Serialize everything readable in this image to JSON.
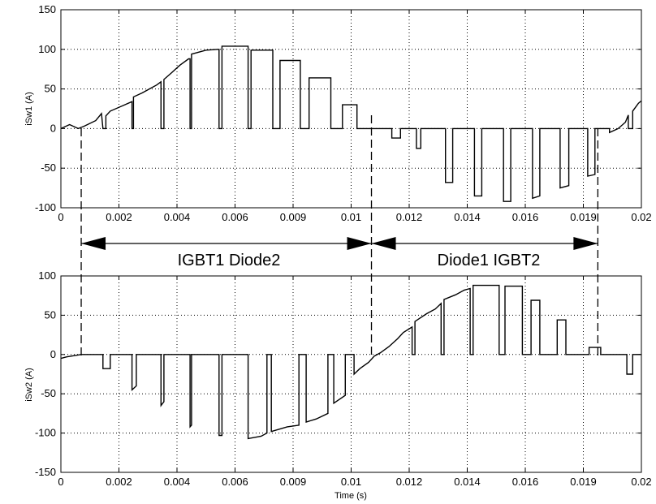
{
  "chart_data": [
    {
      "type": "line",
      "ylabel": "iSw1 (A)",
      "xlabel": "",
      "xlim": [
        0,
        0.02
      ],
      "ylim": [
        -100,
        150
      ],
      "grid": true,
      "x_ticks": [
        "0",
        "0.002",
        "0.004",
        "0.006",
        "0.009",
        "0.01",
        "0.012",
        "0.014",
        "0.016",
        "0.019",
        "0.02"
      ],
      "y_ticks": [
        "150",
        "100",
        "50",
        "0",
        "-50",
        "-100"
      ],
      "series": [
        {
          "points": [
            [
              0,
              0
            ],
            [
              0.0003,
              5
            ],
            [
              0.0006,
              0
            ],
            [
              0.0008,
              3
            ],
            [
              0.0012,
              10
            ],
            [
              0.0014,
              19
            ],
            [
              0.00145,
              0
            ],
            [
              0.00155,
              0
            ],
            [
              0.00155,
              16
            ],
            [
              0.0017,
              22
            ],
            [
              0.0022,
              30
            ],
            [
              0.00245,
              34
            ],
            [
              0.00245,
              0
            ],
            [
              0.0025,
              0
            ],
            [
              0.0025,
              40
            ],
            [
              0.0028,
              45
            ],
            [
              0.0031,
              51
            ],
            [
              0.0033,
              55
            ],
            [
              0.00345,
              59
            ],
            [
              0.00345,
              0
            ],
            [
              0.00355,
              0
            ],
            [
              0.00355,
              62
            ],
            [
              0.0038,
              70
            ],
            [
              0.0041,
              80
            ],
            [
              0.0044,
              88
            ],
            [
              0.00445,
              88
            ],
            [
              0.00445,
              0
            ],
            [
              0.0045,
              0
            ],
            [
              0.0045,
              94
            ],
            [
              0.005,
              99
            ],
            [
              0.0054,
              100
            ],
            [
              0.00545,
              100
            ],
            [
              0.00545,
              0
            ],
            [
              0.00555,
              0
            ],
            [
              0.00555,
              104
            ],
            [
              0.0064,
              104
            ],
            [
              0.00645,
              104
            ],
            [
              0.00645,
              0
            ],
            [
              0.00655,
              0
            ],
            [
              0.00655,
              99
            ],
            [
              0.0071,
              99
            ],
            [
              0.0073,
              99
            ],
            [
              0.0073,
              0
            ],
            [
              0.00755,
              0
            ],
            [
              0.00755,
              86
            ],
            [
              0.0081,
              86
            ],
            [
              0.00825,
              86
            ],
            [
              0.00825,
              0
            ],
            [
              0.00855,
              0
            ],
            [
              0.00855,
              64
            ],
            [
              0.0092,
              64
            ],
            [
              0.0093,
              64
            ],
            [
              0.0093,
              0
            ],
            [
              0.0097,
              0
            ],
            [
              0.0097,
              30
            ],
            [
              0.0102,
              30
            ],
            [
              0.0102,
              0
            ],
            [
              0.0114,
              0
            ],
            [
              0.0114,
              -12
            ],
            [
              0.0117,
              -12
            ],
            [
              0.0117,
              0
            ],
            [
              0.01225,
              0
            ],
            [
              0.01225,
              -25
            ],
            [
              0.0124,
              -25
            ],
            [
              0.0124,
              0
            ],
            [
              0.01325,
              0
            ],
            [
              0.01325,
              -68
            ],
            [
              0.0135,
              -68
            ],
            [
              0.0135,
              0
            ],
            [
              0.01425,
              0
            ],
            [
              0.01425,
              -85
            ],
            [
              0.0145,
              -85
            ],
            [
              0.0145,
              0
            ],
            [
              0.01525,
              0
            ],
            [
              0.01525,
              -92
            ],
            [
              0.0155,
              -92
            ],
            [
              0.0155,
              0
            ],
            [
              0.01625,
              0
            ],
            [
              0.01625,
              -88
            ],
            [
              0.0165,
              -85
            ],
            [
              0.0165,
              0
            ],
            [
              0.0172,
              0
            ],
            [
              0.0172,
              -75
            ],
            [
              0.0175,
              -72
            ],
            [
              0.0175,
              0
            ],
            [
              0.01815,
              0
            ],
            [
              0.01815,
              -60
            ],
            [
              0.0184,
              -58
            ],
            [
              0.0184,
              0
            ],
            [
              0.0189,
              0
            ],
            [
              0.0189,
              -5
            ],
            [
              0.0192,
              0
            ],
            [
              0.01945,
              8
            ],
            [
              0.01955,
              17
            ],
            [
              0.01955,
              0
            ],
            [
              0.0197,
              0
            ],
            [
              0.0197,
              22
            ],
            [
              0.0199,
              32
            ],
            [
              0.0201,
              38
            ],
            [
              0.0203,
              38
            ]
          ]
        }
      ]
    },
    {
      "type": "line",
      "ylabel": "iSw2 (A)",
      "xlabel": "Time (s)",
      "xlim": [
        0,
        0.02
      ],
      "ylim": [
        -150,
        100
      ],
      "grid": true,
      "x_ticks": [
        "0",
        "0.002",
        "0.004",
        "0.006",
        "0.009",
        "0.01",
        "0.012",
        "0.014",
        "0.016",
        "0.019",
        "0.02"
      ],
      "y_ticks": [
        "100",
        "50",
        "0",
        "-50",
        "-100",
        "-150"
      ],
      "series": [
        {
          "points": [
            [
              0,
              -5
            ],
            [
              0.0002,
              -3
            ],
            [
              0.0007,
              0
            ],
            [
              0.00145,
              0
            ],
            [
              0.00145,
              -18
            ],
            [
              0.0017,
              -18
            ],
            [
              0.0017,
              0
            ],
            [
              0.00245,
              0
            ],
            [
              0.00245,
              -45
            ],
            [
              0.0026,
              -40
            ],
            [
              0.0026,
              0
            ],
            [
              0.00345,
              0
            ],
            [
              0.00345,
              -65
            ],
            [
              0.00355,
              -60
            ],
            [
              0.00355,
              0
            ],
            [
              0.00445,
              0
            ],
            [
              0.00445,
              -92
            ],
            [
              0.0045,
              -90
            ],
            [
              0.0045,
              0
            ],
            [
              0.00545,
              0
            ],
            [
              0.00545,
              -103
            ],
            [
              0.00555,
              -103
            ],
            [
              0.00555,
              0
            ],
            [
              0.00645,
              0
            ],
            [
              0.00645,
              -107
            ],
            [
              0.0069,
              -104
            ],
            [
              0.0071,
              -100
            ],
            [
              0.0071,
              0
            ],
            [
              0.00725,
              0
            ],
            [
              0.00725,
              -98
            ],
            [
              0.0078,
              -92
            ],
            [
              0.0082,
              -90
            ],
            [
              0.0082,
              0
            ],
            [
              0.00845,
              0
            ],
            [
              0.00845,
              -86
            ],
            [
              0.0088,
              -82
            ],
            [
              0.0092,
              -75
            ],
            [
              0.0092,
              0
            ],
            [
              0.0094,
              0
            ],
            [
              0.0094,
              -62
            ],
            [
              0.0098,
              -52
            ],
            [
              0.0098,
              0
            ],
            [
              0.0101,
              0
            ],
            [
              0.0101,
              -25
            ],
            [
              0.0103,
              -18
            ],
            [
              0.0106,
              -10
            ],
            [
              0.0108,
              -2
            ],
            [
              0.011,
              2
            ],
            [
              0.0113,
              10
            ],
            [
              0.0116,
              20
            ],
            [
              0.0118,
              28
            ],
            [
              0.0121,
              35
            ],
            [
              0.0121,
              0
            ],
            [
              0.0122,
              0
            ],
            [
              0.0122,
              42
            ],
            [
              0.0126,
              52
            ],
            [
              0.0129,
              58
            ],
            [
              0.0131,
              65
            ],
            [
              0.0131,
              0
            ],
            [
              0.0132,
              0
            ],
            [
              0.0132,
              70
            ],
            [
              0.0136,
              76
            ],
            [
              0.0139,
              82
            ],
            [
              0.0141,
              84
            ],
            [
              0.0141,
              0
            ],
            [
              0.0142,
              0
            ],
            [
              0.0142,
              88
            ],
            [
              0.0149,
              88
            ],
            [
              0.0151,
              88
            ],
            [
              0.0151,
              0
            ],
            [
              0.0153,
              0
            ],
            [
              0.0153,
              87
            ],
            [
              0.0159,
              87
            ],
            [
              0.0159,
              0
            ],
            [
              0.0162,
              0
            ],
            [
              0.0162,
              69
            ],
            [
              0.0165,
              69
            ],
            [
              0.0165,
              0
            ],
            [
              0.0171,
              0
            ],
            [
              0.0171,
              44
            ],
            [
              0.0174,
              44
            ],
            [
              0.0174,
              0
            ],
            [
              0.0182,
              0
            ],
            [
              0.0182,
              9
            ],
            [
              0.0186,
              9
            ],
            [
              0.0186,
              0
            ],
            [
              0.0195,
              0
            ],
            [
              0.0195,
              -25
            ],
            [
              0.0197,
              -25
            ],
            [
              0.0197,
              0
            ],
            [
              0.0203,
              0
            ]
          ]
        }
      ]
    }
  ],
  "regions": {
    "left_label": "IGBT1 Diode2",
    "right_label": "Diode1 IGBT2",
    "boundaries": [
      0.0007,
      0.0107,
      0.0185
    ]
  }
}
